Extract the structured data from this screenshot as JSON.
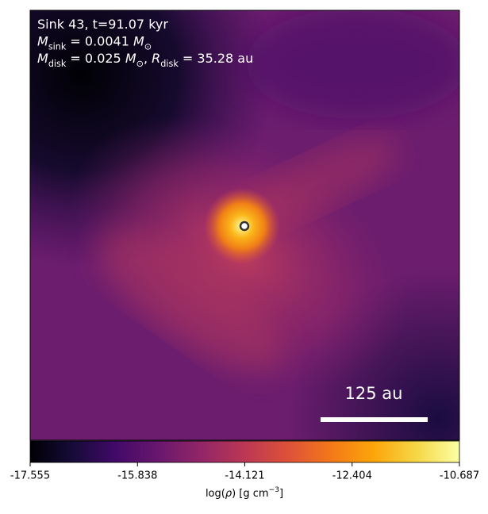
{
  "chart_data": {
    "type": "image",
    "annotations": [
      [
        {
          "text": "Sink 43, t=91.07 kyr",
          "style": "normal"
        }
      ],
      [
        {
          "text": "M",
          "style": "italic"
        },
        {
          "text": "sink",
          "style": "sub"
        },
        {
          "text": " = 0.0041 ",
          "style": "normal"
        },
        {
          "text": "M",
          "style": "italic"
        },
        {
          "text": "⊙",
          "style": "sub"
        }
      ],
      [
        {
          "text": "M",
          "style": "italic"
        },
        {
          "text": "disk",
          "style": "sub"
        },
        {
          "text": " = 0.025 ",
          "style": "normal"
        },
        {
          "text": "M",
          "style": "italic"
        },
        {
          "text": "⊙",
          "style": "sub"
        },
        {
          "text": ", ",
          "style": "normal"
        },
        {
          "text": "R",
          "style": "italic"
        },
        {
          "text": "disk",
          "style": "sub"
        },
        {
          "text": " = 35.28 au",
          "style": "normal"
        }
      ]
    ],
    "scale_bar": "125 au",
    "colormap": "inferno",
    "colorbar": {
      "label": [
        {
          "text": "log(",
          "style": "normal"
        },
        {
          "text": "ρ",
          "style": "italic"
        },
        {
          "text": ") [g cm",
          "style": "normal"
        },
        {
          "text": "−3",
          "style": "sup"
        },
        {
          "text": "]",
          "style": "normal"
        }
      ],
      "clim": [
        -17.555,
        -10.687
      ],
      "ticks": [
        -17.555,
        -15.838,
        -14.121,
        -12.404,
        -10.687
      ]
    }
  }
}
